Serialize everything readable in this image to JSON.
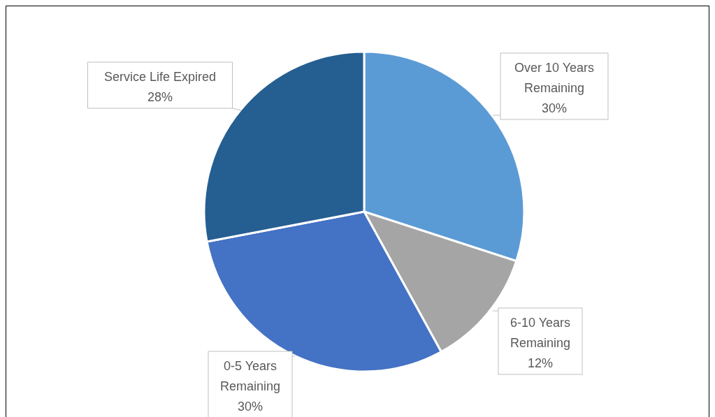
{
  "chart_data": {
    "type": "pie",
    "categories": [
      "Over 10 Years Remaining",
      "6-10 Years Remaining",
      "0-5 Years Remaining",
      "Service Life Expired"
    ],
    "values": [
      30,
      12,
      30,
      28
    ],
    "value_labels": [
      "30%",
      "12%",
      "30%",
      "28%"
    ],
    "colors": [
      "#5b9bd5",
      "#a5a5a5",
      "#4472c4",
      "#255e91"
    ],
    "legend": false
  }
}
